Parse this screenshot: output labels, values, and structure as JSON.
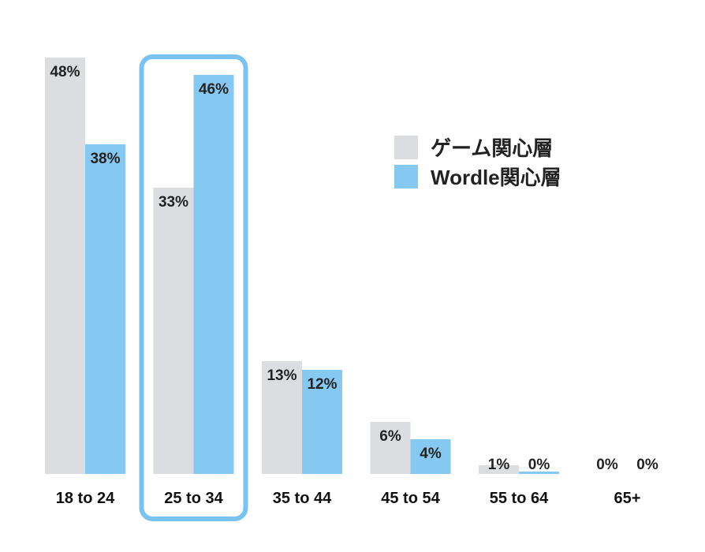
{
  "chart_data": {
    "type": "bar",
    "categories": [
      "18 to 24",
      "25 to 34",
      "35 to 44",
      "45 to 54",
      "55 to 64",
      "65+"
    ],
    "series": [
      {
        "name": "ゲーム関心層",
        "color": "#dcdde1",
        "values": [
          48,
          33,
          13,
          6,
          1,
          0
        ],
        "labels": [
          "48%",
          "33%",
          "13%",
          "6%",
          "1%",
          "0%"
        ]
      },
      {
        "name": "Wordle関心層",
        "color": "#85c8f2",
        "values": [
          38,
          46,
          12,
          4,
          0,
          0
        ],
        "labels": [
          "38%",
          "46%",
          "12%",
          "4%",
          "0%",
          "0%"
        ]
      }
    ],
    "ylim": [
      0,
      48
    ],
    "unit": "%",
    "highlight_category": "25 to 34",
    "highlight_color": "#79c3f2",
    "legend_position": "right-top",
    "grid": false,
    "title": "",
    "xlabel": "",
    "ylabel": ""
  }
}
